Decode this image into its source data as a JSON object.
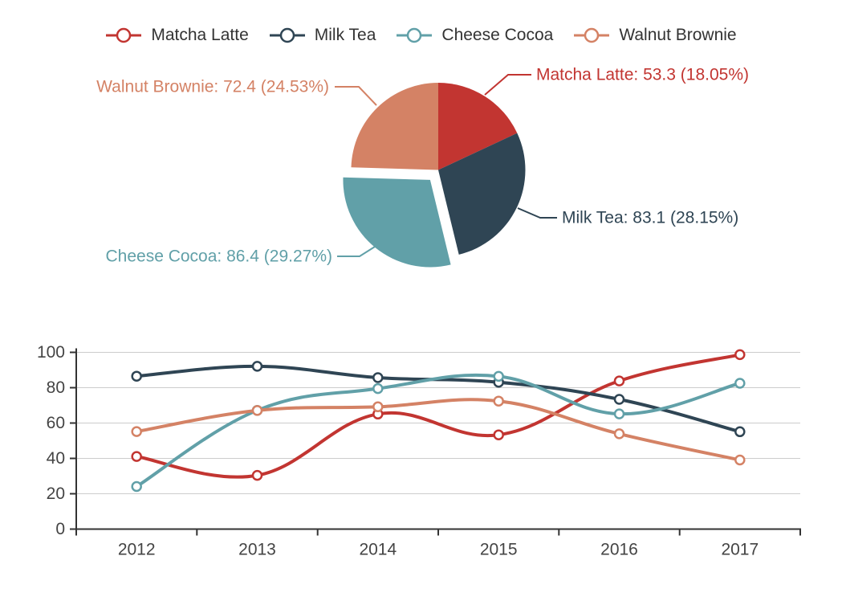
{
  "legend": {
    "items": [
      {
        "label": "Matcha Latte",
        "color": "#c23531"
      },
      {
        "label": "Milk Tea",
        "color": "#2f4554"
      },
      {
        "label": "Cheese Cocoa",
        "color": "#61a0a8"
      },
      {
        "label": "Walnut Brownie",
        "color": "#d48265"
      }
    ]
  },
  "palette": {
    "axis_line": "#333333",
    "axis_label": "#444444",
    "gridline": "#cccccc",
    "background": "#ffffff"
  },
  "chart_data": [
    {
      "type": "pie",
      "categories": [
        "Matcha Latte",
        "Milk Tea",
        "Cheese Cocoa",
        "Walnut Brownie"
      ],
      "values": [
        53.3,
        83.1,
        86.4,
        72.4
      ],
      "percents": [
        18.05,
        28.15,
        29.27,
        24.53
      ],
      "colors": [
        "#c23531",
        "#2f4554",
        "#61a0a8",
        "#d48265"
      ],
      "selected": "Cheese Cocoa",
      "start_angle_deg": 0,
      "direction": "clockwise",
      "labels": [
        "Matcha Latte: 53.3 (18.05%)",
        "Milk Tea: 83.1 (28.15%)",
        "Cheese Cocoa: 86.4 (29.27%)",
        "Walnut Brownie: 72.4 (24.53%)"
      ]
    },
    {
      "type": "line",
      "smooth": true,
      "grid": true,
      "x": [
        "2012",
        "2013",
        "2014",
        "2015",
        "2016",
        "2017"
      ],
      "yticks": [
        0,
        20,
        40,
        60,
        80,
        100
      ],
      "ylim": [
        0,
        100
      ],
      "series": [
        {
          "name": "Matcha Latte",
          "color": "#c23531",
          "values": [
            41.1,
            30.4,
            65.1,
            53.3,
            83.8,
            98.7
          ]
        },
        {
          "name": "Milk Tea",
          "color": "#2f4554",
          "values": [
            86.5,
            92.1,
            85.7,
            83.1,
            73.4,
            55.1
          ]
        },
        {
          "name": "Cheese Cocoa",
          "color": "#61a0a8",
          "values": [
            24.1,
            67.2,
            79.5,
            86.4,
            65.2,
            82.5
          ]
        },
        {
          "name": "Walnut Brownie",
          "color": "#d48265",
          "values": [
            55.2,
            67.1,
            69.2,
            72.4,
            53.9,
            39.1
          ]
        }
      ]
    }
  ]
}
